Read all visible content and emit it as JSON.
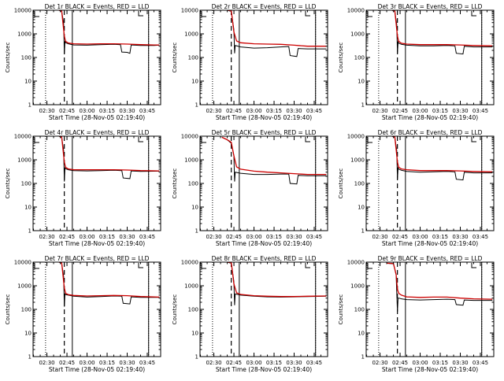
{
  "colors": {
    "events": "#000000",
    "lld": "#cc0000",
    "axes": "#000000",
    "background": "#ffffff"
  },
  "chart_data": [
    {
      "type": "line",
      "title": "Det 1r BLACK = Events, RED = LLD",
      "xlabel": "Start Time (28-Nov-05 02:19:40)",
      "ylabel": "Counts/sec",
      "x_ticks": [
        "02:30",
        "02:45",
        "03:00",
        "03:15",
        "03:30",
        "03:45"
      ],
      "y_ticks": [
        "1",
        "10",
        "100",
        "1000",
        "10000"
      ],
      "xlim": [
        "02:19:40",
        "03:55"
      ],
      "ylim": [
        1,
        10000
      ],
      "yscale": "log",
      "markers": {
        "dotted": [
          "02:29",
          "03:46"
        ],
        "dashed": [
          "02:43"
        ],
        "solid": [
          "02:49",
          "03:46"
        ]
      },
      "series": [
        {
          "color": "#000000",
          "x": [
            "02:39",
            "02:41",
            "02:42:30",
            "02:43",
            "02:43:30",
            "02:44",
            "02:46",
            "02:50",
            "03:00",
            "03:10",
            "03:20",
            "03:25",
            "03:26",
            "03:30",
            "03:32",
            "03:33",
            "03:40",
            "03:50",
            "03:54"
          ],
          "values": [
            10000,
            9000,
            3000,
            140,
            500,
            420,
            380,
            340,
            330,
            350,
            360,
            350,
            170,
            165,
            150,
            340,
            320,
            320,
            330
          ]
        },
        {
          "color": "#cc0000",
          "x": [
            "02:39",
            "02:41",
            "02:43",
            "02:44",
            "02:46",
            "02:50",
            "03:00",
            "03:10",
            "03:20",
            "03:30",
            "03:40",
            "03:50",
            "03:54"
          ],
          "values": [
            10000,
            9500,
            800,
            480,
            410,
            380,
            370,
            380,
            380,
            370,
            350,
            340,
            340
          ]
        }
      ]
    },
    {
      "type": "line",
      "title": "Det 2r BLACK = Events, RED = LLD",
      "xlabel": "Start Time (28-Nov-05 02:19:40)",
      "ylabel": "Counts/sec",
      "x_ticks": [
        "02:30",
        "02:45",
        "03:00",
        "03:15",
        "03:30",
        "03:45"
      ],
      "y_ticks": [
        "1",
        "10",
        "100",
        "1000",
        "10000"
      ],
      "xlim": [
        "02:19:40",
        "03:55"
      ],
      "ylim": [
        1,
        10000
      ],
      "yscale": "log",
      "markers": {
        "dotted": [
          "02:29",
          "03:46"
        ],
        "dashed": [
          "02:43"
        ],
        "solid": [
          "02:49",
          "03:46"
        ]
      },
      "series": [
        {
          "color": "#000000",
          "x": [
            "02:40",
            "02:43",
            "02:45",
            "02:45:30",
            "02:46",
            "02:50",
            "03:00",
            "03:10",
            "03:20",
            "03:26",
            "03:27",
            "03:32",
            "03:33",
            "03:40",
            "03:54"
          ],
          "values": [
            10000,
            9000,
            1500,
            150,
            320,
            280,
            250,
            260,
            280,
            290,
            120,
            110,
            240,
            230,
            230
          ]
        },
        {
          "color": "#cc0000",
          "x": [
            "02:40",
            "02:43",
            "02:45",
            "02:47",
            "02:50",
            "03:00",
            "03:10",
            "03:20",
            "03:30",
            "03:40",
            "03:54"
          ],
          "values": [
            10000,
            9500,
            1200,
            500,
            420,
            380,
            370,
            360,
            330,
            300,
            300
          ]
        }
      ]
    },
    {
      "type": "line",
      "title": "Det 3r BLACK = Events, RED = LLD",
      "xlabel": "Start Time (28-Nov-05 02:19:40)",
      "ylabel": "Counts/sec",
      "x_ticks": [
        "02:30",
        "02:45",
        "03:00",
        "03:15",
        "03:30",
        "03:45"
      ],
      "y_ticks": [
        "1",
        "10",
        "100",
        "1000",
        "10000"
      ],
      "xlim": [
        "02:19:40",
        "03:55"
      ],
      "ylim": [
        1,
        10000
      ],
      "yscale": "log",
      "markers": {
        "dotted": [
          "02:29",
          "03:46"
        ],
        "dashed": [
          "02:43"
        ],
        "solid": [
          "02:49",
          "03:46"
        ]
      },
      "series": [
        {
          "color": "#000000",
          "x": [
            "02:39",
            "02:41",
            "02:42:30",
            "02:43",
            "02:43:30",
            "02:44",
            "02:46",
            "02:50",
            "03:00",
            "03:10",
            "03:20",
            "03:26",
            "03:27",
            "03:32",
            "03:33",
            "03:40",
            "03:54"
          ],
          "values": [
            10000,
            9000,
            2500,
            150,
            450,
            400,
            360,
            330,
            310,
            310,
            320,
            310,
            150,
            140,
            300,
            280,
            280
          ]
        },
        {
          "color": "#cc0000",
          "x": [
            "02:39",
            "02:41",
            "02:43",
            "02:44",
            "02:46",
            "02:50",
            "03:00",
            "03:10",
            "03:20",
            "03:30",
            "03:40",
            "03:54"
          ],
          "values": [
            10000,
            9500,
            800,
            480,
            400,
            370,
            350,
            350,
            350,
            340,
            320,
            310
          ]
        }
      ]
    },
    {
      "type": "line",
      "title": "Det 4r BLACK = Events, RED = LLD",
      "xlabel": "Start Time (28-Nov-05 02:19:40)",
      "ylabel": "Counts/sec",
      "x_ticks": [
        "02:30",
        "02:45",
        "03:00",
        "03:15",
        "03:30",
        "03:45"
      ],
      "y_ticks": [
        "1",
        "10",
        "100",
        "1000",
        "10000"
      ],
      "xlim": [
        "02:19:40",
        "03:55"
      ],
      "ylim": [
        1,
        10000
      ],
      "yscale": "log",
      "markers": {
        "dotted": [
          "02:29",
          "03:46"
        ],
        "dashed": [
          "02:43"
        ],
        "solid": [
          "02:49",
          "03:46"
        ]
      },
      "series": [
        {
          "color": "#000000",
          "x": [
            "02:39",
            "02:41",
            "02:42:30",
            "02:43",
            "02:43:30",
            "02:44",
            "02:46",
            "02:50",
            "03:00",
            "03:10",
            "03:20",
            "03:26",
            "03:27",
            "03:32",
            "03:33",
            "03:40",
            "03:54"
          ],
          "values": [
            10000,
            9000,
            2500,
            120,
            450,
            420,
            380,
            350,
            340,
            350,
            360,
            350,
            170,
            160,
            340,
            320,
            330
          ]
        },
        {
          "color": "#cc0000",
          "x": [
            "02:39",
            "02:41",
            "02:43",
            "02:44",
            "02:46",
            "02:50",
            "03:00",
            "03:10",
            "03:20",
            "03:30",
            "03:40",
            "03:54"
          ],
          "values": [
            10000,
            9500,
            800,
            480,
            410,
            380,
            380,
            380,
            380,
            370,
            350,
            340
          ]
        }
      ]
    },
    {
      "type": "line",
      "title": "Det 5r BLACK = Events, RED = LLD",
      "xlabel": "Start Time (28-Nov-05 02:19:40)",
      "ylabel": "Counts/sec",
      "x_ticks": [
        "02:30",
        "02:45",
        "03:00",
        "03:15",
        "03:30",
        "03:45"
      ],
      "y_ticks": [
        "1",
        "10",
        "100",
        "1000",
        "10000"
      ],
      "xlim": [
        "02:19:40",
        "03:55"
      ],
      "ylim": [
        1,
        10000
      ],
      "yscale": "log",
      "markers": {
        "dotted": [
          "02:29",
          "03:46"
        ],
        "dashed": [
          "02:43"
        ],
        "solid": [
          "02:49",
          "03:46"
        ]
      },
      "series": [
        {
          "color": "#000000",
          "x": [
            "02:36",
            "02:40",
            "02:43",
            "02:45",
            "02:45:30",
            "02:46",
            "02:50",
            "03:00",
            "03:10",
            "03:20",
            "03:26",
            "03:27",
            "03:32",
            "03:33",
            "03:40",
            "03:54"
          ],
          "values": [
            9000,
            7000,
            5000,
            1500,
            120,
            300,
            270,
            240,
            240,
            250,
            250,
            100,
            95,
            220,
            210,
            210
          ]
        },
        {
          "color": "#cc0000",
          "x": [
            "02:36",
            "02:38",
            "02:40",
            "02:42",
            "02:43",
            "02:45",
            "02:47",
            "02:50",
            "03:00",
            "03:10",
            "03:20",
            "03:30",
            "03:40",
            "03:54"
          ],
          "values": [
            9000,
            8000,
            7000,
            6000,
            5500,
            1500,
            500,
            400,
            330,
            300,
            280,
            260,
            240,
            240
          ]
        }
      ]
    },
    {
      "type": "line",
      "title": "Det 6r BLACK = Events, RED = LLD",
      "xlabel": "Start Time (28-Nov-05 02:19:40)",
      "ylabel": "Counts/sec",
      "x_ticks": [
        "02:30",
        "02:45",
        "03:00",
        "03:15",
        "03:30",
        "03:45"
      ],
      "y_ticks": [
        "1",
        "10",
        "100",
        "1000",
        "10000"
      ],
      "xlim": [
        "02:19:40",
        "03:55"
      ],
      "ylim": [
        1,
        10000
      ],
      "yscale": "log",
      "markers": {
        "dotted": [
          "02:29",
          "03:46"
        ],
        "dashed": [
          "02:43"
        ],
        "solid": [
          "02:49",
          "03:46"
        ]
      },
      "series": [
        {
          "color": "#000000",
          "x": [
            "02:39",
            "02:41",
            "02:42:30",
            "02:43",
            "02:43:30",
            "02:44",
            "02:46",
            "02:50",
            "03:00",
            "03:10",
            "03:20",
            "03:26",
            "03:27",
            "03:32",
            "03:33",
            "03:40",
            "03:54"
          ],
          "values": [
            10000,
            9000,
            2500,
            150,
            450,
            400,
            360,
            320,
            300,
            310,
            320,
            310,
            150,
            140,
            300,
            280,
            280
          ]
        },
        {
          "color": "#cc0000",
          "x": [
            "02:39",
            "02:41",
            "02:43",
            "02:44",
            "02:46",
            "02:50",
            "03:00",
            "03:10",
            "03:20",
            "03:30",
            "03:40",
            "03:54"
          ],
          "values": [
            10000,
            9500,
            800,
            480,
            410,
            380,
            350,
            350,
            350,
            340,
            320,
            310
          ]
        }
      ]
    },
    {
      "type": "line",
      "title": "Det 7r BLACK = Events, RED = LLD",
      "xlabel": "Start Time (28-Nov-05 02:19:40)",
      "ylabel": "Counts/sec",
      "x_ticks": [
        "02:30",
        "02:45",
        "03:00",
        "03:15",
        "03:30",
        "03:45"
      ],
      "y_ticks": [
        "1",
        "10",
        "100",
        "1000",
        "10000"
      ],
      "xlim": [
        "02:19:40",
        "03:55"
      ],
      "ylim": [
        1,
        10000
      ],
      "yscale": "log",
      "markers": {
        "dotted": [
          "02:29",
          "03:46"
        ],
        "dashed": [
          "02:43"
        ],
        "solid": [
          "02:49",
          "03:46"
        ]
      },
      "series": [
        {
          "color": "#000000",
          "x": [
            "02:39",
            "02:41",
            "02:42:30",
            "02:43",
            "02:43:30",
            "02:44",
            "02:46",
            "02:50",
            "03:00",
            "03:10",
            "03:20",
            "03:26",
            "03:27",
            "03:32",
            "03:33",
            "03:40",
            "03:54"
          ],
          "values": [
            10000,
            9000,
            2500,
            130,
            450,
            420,
            400,
            360,
            330,
            350,
            370,
            360,
            180,
            170,
            340,
            320,
            320
          ]
        },
        {
          "color": "#cc0000",
          "x": [
            "02:39",
            "02:41",
            "02:43",
            "02:44",
            "02:46",
            "02:50",
            "03:00",
            "03:10",
            "03:20",
            "03:30",
            "03:40",
            "03:54"
          ],
          "values": [
            10000,
            9500,
            800,
            480,
            420,
            390,
            370,
            380,
            390,
            380,
            350,
            330
          ]
        }
      ]
    },
    {
      "type": "line",
      "title": "Det 8r BLACK = Events, RED = LLD",
      "xlabel": "Start Time (28-Nov-05 02:19:40)",
      "ylabel": "Counts/sec",
      "x_ticks": [
        "02:30",
        "02:45",
        "03:00",
        "03:15",
        "03:30",
        "03:45"
      ],
      "y_ticks": [
        "1",
        "10",
        "100",
        "1000",
        "10000"
      ],
      "xlim": [
        "02:19:40",
        "03:55"
      ],
      "ylim": [
        1,
        10000
      ],
      "yscale": "log",
      "markers": {
        "dotted": [
          "02:29",
          "03:46"
        ],
        "dashed": [
          "02:43"
        ],
        "solid": [
          "02:49",
          "03:46"
        ]
      },
      "series": [
        {
          "color": "#000000",
          "x": [
            "02:40",
            "02:43",
            "02:45",
            "02:45:30",
            "02:46",
            "02:50",
            "03:00",
            "03:10",
            "03:20",
            "03:30",
            "03:40",
            "03:54"
          ],
          "values": [
            10000,
            9000,
            1500,
            150,
            450,
            400,
            360,
            340,
            330,
            340,
            350,
            360
          ]
        },
        {
          "color": "#cc0000",
          "x": [
            "02:40",
            "02:43",
            "02:45",
            "02:47",
            "02:50",
            "03:00",
            "03:10",
            "03:20",
            "03:30",
            "03:40",
            "03:54"
          ],
          "values": [
            10000,
            9500,
            1200,
            500,
            430,
            380,
            360,
            350,
            350,
            360,
            370
          ]
        }
      ]
    },
    {
      "type": "line",
      "title": "Det 9r BLACK = Events, RED = LLD",
      "xlabel": "Start Time (28-Nov-05 02:19:40)",
      "ylabel": "Counts/sec",
      "x_ticks": [
        "02:30",
        "02:45",
        "03:00",
        "03:15",
        "03:30",
        "03:45"
      ],
      "y_ticks": [
        "1",
        "10",
        "100",
        "1000",
        "10000"
      ],
      "xlim": [
        "02:19:40",
        "03:55"
      ],
      "ylim": [
        1,
        10000
      ],
      "yscale": "log",
      "markers": {
        "dotted": [
          "02:29",
          "03:46"
        ],
        "dashed": [
          "02:43"
        ],
        "solid": [
          "02:49",
          "03:46"
        ]
      },
      "series": [
        {
          "color": "#000000",
          "x": [
            "02:35",
            "02:40",
            "02:42",
            "02:43",
            "02:43:30",
            "02:44",
            "02:46",
            "02:50",
            "03:00",
            "03:10",
            "03:20",
            "03:26",
            "03:27",
            "03:32",
            "03:33",
            "03:40",
            "03:54"
          ],
          "values": [
            9000,
            8500,
            3000,
            80,
            300,
            300,
            280,
            260,
            250,
            260,
            270,
            260,
            160,
            150,
            250,
            240,
            240
          ]
        },
        {
          "color": "#cc0000",
          "x": [
            "02:35",
            "02:40",
            "02:42",
            "02:43",
            "02:44",
            "02:46",
            "02:50",
            "03:00",
            "03:10",
            "03:20",
            "03:30",
            "03:40",
            "03:54"
          ],
          "values": [
            9000,
            8800,
            3000,
            700,
            480,
            400,
            340,
            320,
            330,
            330,
            300,
            280,
            270
          ]
        }
      ]
    }
  ]
}
